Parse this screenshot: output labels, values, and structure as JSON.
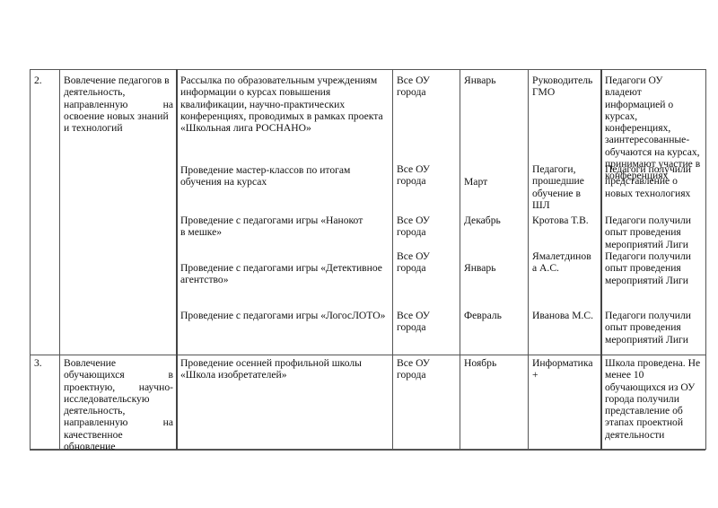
{
  "rows": [
    {
      "number": "2.",
      "goal_lines": [
        "Вовлечение педагогов в",
        "деятельность,",
        "направленную на",
        "освоение новых знаний",
        "и технологий"
      ],
      "items": [
        {
          "activity": "Рассылка по образовательным учреждениям информации о курсах повышения квалификации, научно-практических конференциях, проводимых в рамках проекта «Школьная лига РОСНАНО»",
          "participants": "Все ОУ города",
          "month": "Январь",
          "responsible": "Руководитель ГМО",
          "result": "Педагоги ОУ владеют информацией о курсах, конференциях, заинтересованные- обучаются на курсах, принимают участие в конференциях"
        },
        {
          "activity": "Проведение мастер-классов по итогам обучения на курсах",
          "participants": "Все ОУ города",
          "month": "Март",
          "responsible": "Педагоги, прошедшие обучение в ШЛ",
          "result": "Педагоги получили представление о новых технологиях"
        },
        {
          "activity": "Проведение с педагогами игры «Нанокот в мешке»",
          "participants": "Все ОУ города",
          "month": "Декабрь",
          "responsible": "Кротова Т.В.",
          "result": "Педагоги получили опыт проведения мероприятий Лиги"
        },
        {
          "activity": "Проведение с педагогами игры «Детективное агентство»",
          "participants": "Все ОУ города",
          "month": "Январь",
          "responsible": "Ямалетдинов а А.С.",
          "result": "Педагоги получили опыт проведения мероприятий Лиги"
        },
        {
          "activity": "Проведение с педагогами игры «ЛогосЛОТО»",
          "participants": "Все ОУ города",
          "month": "Февраль",
          "responsible": "Иванова М.С.",
          "result": "Педагоги получили опыт проведения мероприятий Лиги"
        }
      ]
    },
    {
      "number": "3.",
      "goal": "Вовлечение обучающихся в проектную, научно-исследовательскую деятельность, направленную на качественное обновление",
      "items": [
        {
          "activity": "Проведение осенней профильной школы «Школа изобретателей»",
          "participants": "Все ОУ города",
          "month": "Ноябрь",
          "responsible": "Информатика +",
          "result": "Школа проведена. Не менее 10 обучающихся из  ОУ города получили представление об этапах проектной деятельности"
        }
      ]
    }
  ]
}
